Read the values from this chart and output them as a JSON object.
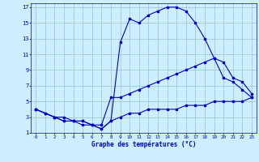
{
  "xlabel": "Graphe des températures (°C)",
  "bg_color": "#cceeff",
  "line_color": "#0000cc",
  "grid_color": "#99cccc",
  "xlim": [
    -0.5,
    23.5
  ],
  "ylim": [
    1,
    17.5
  ],
  "xticks": [
    0,
    1,
    2,
    3,
    4,
    5,
    6,
    7,
    8,
    9,
    10,
    11,
    12,
    13,
    14,
    15,
    16,
    17,
    18,
    19,
    20,
    21,
    22,
    23
  ],
  "yticks": [
    1,
    3,
    5,
    7,
    9,
    11,
    13,
    15,
    17
  ],
  "line1_x": [
    0,
    1,
    2,
    3,
    4,
    5,
    6,
    7,
    8,
    9,
    10,
    11,
    12,
    13,
    14,
    15,
    16,
    17,
    18,
    19,
    20,
    21,
    22,
    23
  ],
  "line1_y": [
    4.0,
    3.5,
    3.0,
    3.0,
    2.5,
    2.5,
    2.0,
    1.5,
    2.5,
    3.0,
    3.5,
    3.5,
    4.0,
    4.0,
    4.0,
    4.0,
    4.5,
    4.5,
    4.5,
    5.0,
    5.0,
    5.0,
    5.0,
    5.5
  ],
  "line2_x": [
    0,
    1,
    2,
    3,
    4,
    5,
    6,
    7,
    8,
    9,
    10,
    11,
    12,
    13,
    14,
    15,
    16,
    17,
    18,
    19,
    20,
    21,
    22,
    23
  ],
  "line2_y": [
    4.0,
    3.5,
    3.0,
    2.5,
    2.5,
    2.5,
    2.0,
    1.5,
    2.5,
    12.5,
    15.5,
    15.0,
    16.0,
    16.5,
    17.0,
    17.0,
    16.5,
    15.0,
    13.0,
    10.5,
    8.0,
    7.5,
    6.5,
    5.5
  ],
  "line3_x": [
    0,
    2,
    3,
    4,
    5,
    6,
    7,
    8,
    9,
    10,
    11,
    12,
    13,
    14,
    15,
    16,
    17,
    18,
    19,
    20,
    21,
    22,
    23
  ],
  "line3_y": [
    4.0,
    3.0,
    2.5,
    2.5,
    2.0,
    2.0,
    2.0,
    5.5,
    5.5,
    6.0,
    6.5,
    7.0,
    7.5,
    8.0,
    8.5,
    9.0,
    9.5,
    10.0,
    10.5,
    10.0,
    8.0,
    7.5,
    6.0
  ]
}
